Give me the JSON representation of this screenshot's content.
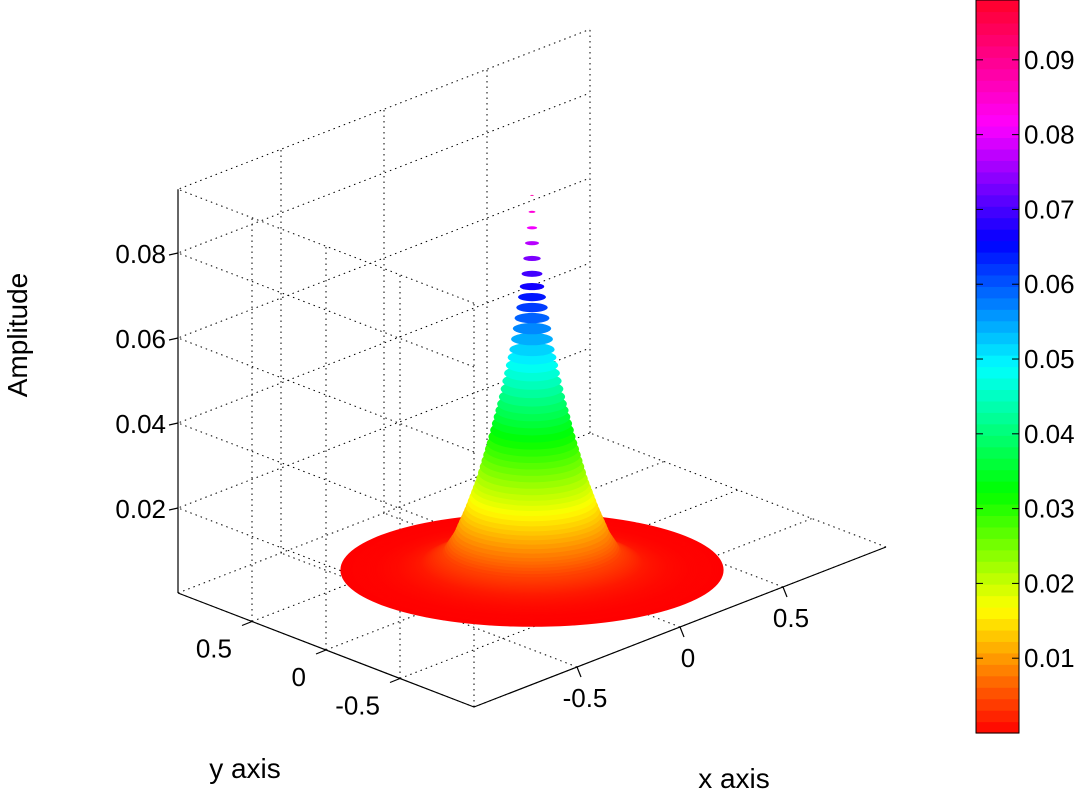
{
  "chart_data": {
    "type": "surface",
    "title": "",
    "xlabel": "x axis",
    "ylabel": "y axis",
    "zlabel": "Amplitude",
    "x_ticks": [
      "-0.5",
      "0",
      "0.5"
    ],
    "y_ticks": [
      "-0.5",
      "0",
      "0.5"
    ],
    "z_ticks": [
      "0.02",
      "0.04",
      "0.06",
      "0.08"
    ],
    "xlim": [
      -1,
      1
    ],
    "ylim": [
      -1,
      1
    ],
    "zlim": [
      0,
      0.095
    ],
    "surface": {
      "shape": "radially symmetric peak on a disc of radius 0.85",
      "radius": [
        0.0,
        0.02,
        0.05,
        0.1,
        0.15,
        0.2,
        0.25,
        0.3,
        0.35,
        0.4,
        0.5,
        0.6,
        0.7,
        0.8,
        0.85
      ],
      "amplitude": [
        0.092,
        0.082,
        0.068,
        0.052,
        0.04,
        0.03,
        0.021,
        0.014,
        0.008,
        0.004,
        0.0015,
        0.0006,
        0.0002,
        0.0001,
        0.0
      ]
    },
    "grid": true,
    "colormap": "hsv (red to magenta)",
    "colorbar": {
      "ticks": [
        "0.01",
        "0.02",
        "0.03",
        "0.04",
        "0.05",
        "0.06",
        "0.07",
        "0.08",
        "0.09"
      ],
      "range": [
        0,
        0.098
      ],
      "placement": "right"
    }
  }
}
